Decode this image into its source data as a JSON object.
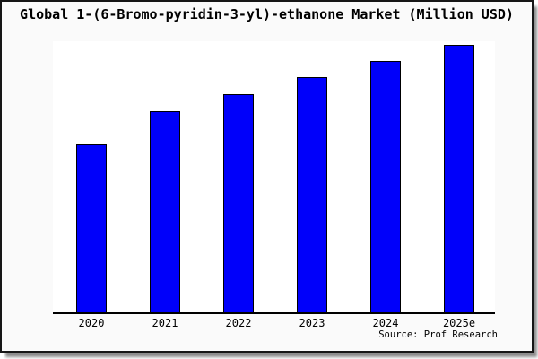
{
  "window": {
    "bg": "#fafafa",
    "border_color": "#161616",
    "plot_bg": "#ffffff"
  },
  "chart_data": {
    "type": "bar",
    "title": "Global 1-(6-Bromo-pyridin-3-yl)-ethanone Market (Million USD)",
    "categories": [
      "2020",
      "2021",
      "2022",
      "2023",
      "2024",
      "2025e"
    ],
    "values": [
      62.8,
      75.3,
      81.8,
      88.0,
      94.0,
      100.0
    ],
    "values_note": "relative bar heights estimated from pixels; chart shows no y-axis tick labels (2025e bar = 100)",
    "xlabel": "",
    "ylabel": "",
    "ylim": [
      0,
      101.5
    ],
    "grid": false,
    "legend": null,
    "bar_color": "#0000fa",
    "bar_edge_color": "#000000",
    "axis_color": "#000000",
    "source_note": "Source: Prof Research"
  }
}
